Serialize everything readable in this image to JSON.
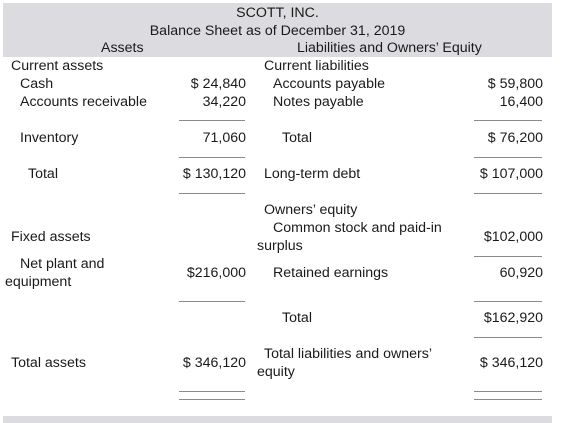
{
  "header": {
    "company": "SCOTT, INC.",
    "statement": "Balance Sheet as of December 31, 2019",
    "assets_heading": "Assets",
    "liabilities_heading": "Liabilities and Owners’ Equity"
  },
  "assets": {
    "current_label": "Current assets",
    "cash_label": "Cash",
    "cash_value": "$ 24,840",
    "ar_label": "Accounts receivable",
    "ar_value": "34,220",
    "inventory_label": "Inventory",
    "inventory_value": "71,060",
    "total_current_label": "Total",
    "total_current_value": "$ 130,120",
    "fixed_label": "Fixed assets",
    "net_plant_line1": "Net plant and",
    "net_plant_line2": "equipment",
    "net_plant_value": "$216,000",
    "total_assets_label": "Total assets",
    "total_assets_value": "$ 346,120"
  },
  "liabilities": {
    "current_label": "Current liabilities",
    "ap_label": "Accounts payable",
    "ap_value": "$ 59,800",
    "np_label": "Notes payable",
    "np_value": "16,400",
    "total_current_label": "Total",
    "total_current_value": "$ 76,200",
    "ltd_label": "Long-term debt",
    "ltd_value": "$ 107,000",
    "equity_label": "Owners’ equity",
    "common_line1": "Common stock and paid-in",
    "common_line2": "surplus",
    "common_value": "$102,000",
    "retained_label": "Retained earnings",
    "retained_value": "60,920",
    "total_equity_label": "Total",
    "total_equity_value": "$162,920",
    "total_le_line1": "Total liabilities and owners’",
    "total_le_line2": "equity",
    "total_le_value": "$ 346,120"
  }
}
